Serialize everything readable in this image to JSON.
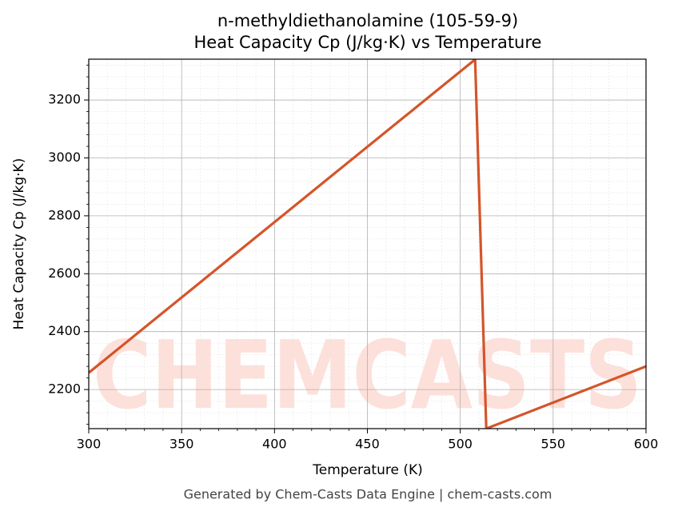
{
  "chart_data": {
    "type": "line",
    "title": "n-methyldiethanolamine (105-59-9)",
    "subtitle": "Heat Capacity Cp (J/kg·K) vs Temperature",
    "x_label": "Temperature (K)",
    "y_label": "Heat Capacity Cp (J/kg·K)",
    "watermark": "CHEMCASTS",
    "footer": "Generated by Chem-Casts Data Engine | chem-casts.com",
    "x": [
      300,
      508,
      514,
      600
    ],
    "series": [
      {
        "name": "Heat Capacity Cp",
        "color": "#d4552a",
        "values": [
          2258,
          3340,
          2065,
          2280
        ]
      }
    ],
    "xlim": [
      300,
      600
    ],
    "ylim": [
      2065,
      3341
    ],
    "xticks": [
      300,
      350,
      400,
      450,
      500,
      550,
      600
    ],
    "yticks": [
      2200,
      2400,
      2600,
      2800,
      3000,
      3200
    ],
    "xminorticks": [
      310,
      320,
      330,
      340,
      360,
      370,
      380,
      390,
      410,
      420,
      430,
      440,
      460,
      470,
      480,
      490,
      510,
      520,
      530,
      540,
      560,
      570,
      580,
      590
    ],
    "yminorticks": [
      2080,
      2120,
      2160,
      2240,
      2280,
      2320,
      2360,
      2440,
      2480,
      2520,
      2560,
      2640,
      2680,
      2720,
      2760,
      2840,
      2880,
      2920,
      2960,
      3040,
      3080,
      3120,
      3160,
      3240,
      3280,
      3320
    ],
    "grid": true
  }
}
